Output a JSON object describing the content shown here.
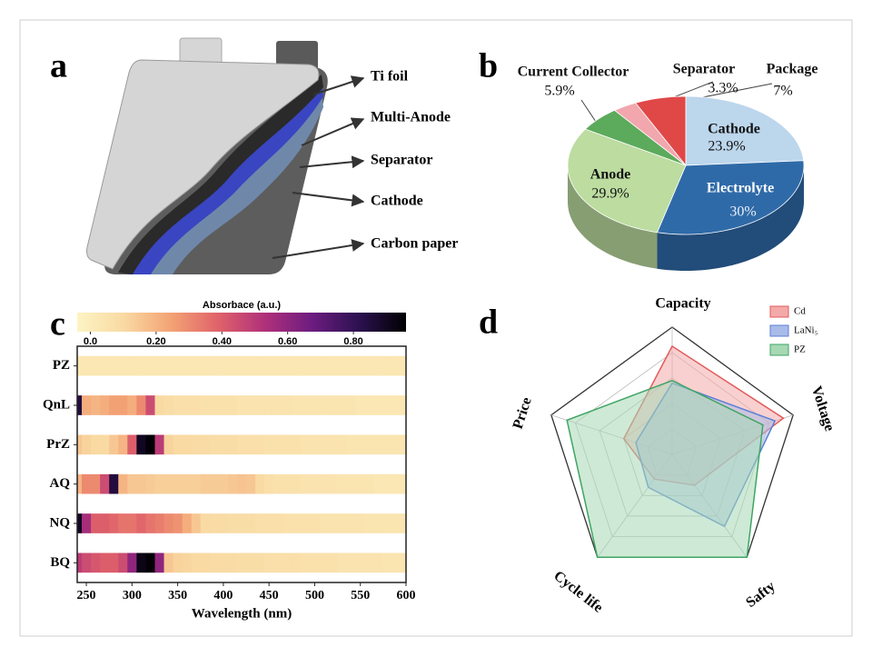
{
  "diagram": {
    "panel_labels": [
      "a",
      "b",
      "c",
      "d"
    ],
    "labels": [
      "Ti foil",
      "Multi-Anode",
      "Separator",
      "Cathode",
      "Carbon paper"
    ]
  },
  "chart_data": [
    {
      "type": "pie",
      "categories": [
        "Cathode",
        "Electrolyte",
        "Anode",
        "Current Collector",
        "Separator",
        "Package"
      ],
      "values": [
        23.9,
        30,
        29.9,
        5.9,
        3.3,
        7
      ],
      "value_labels": [
        "23.9%",
        "30%",
        "29.9%",
        "5.9%",
        "3.3%",
        "7%"
      ],
      "colors": [
        "#bcd6ec",
        "#2f6aa8",
        "#bcdca0",
        "#5caa5c",
        "#f2a6ad",
        "#e04848"
      ]
    },
    {
      "type": "heatmap",
      "colorbar_label": "Absorbace (a.u.)",
      "categories": [
        "PZ",
        "QnL",
        "PrZ",
        "AQ",
        "NQ",
        "BQ"
      ],
      "x": [
        240,
        250,
        260,
        270,
        280,
        290,
        300,
        310,
        320,
        330,
        340,
        350,
        360,
        370,
        380,
        390,
        400,
        410,
        420,
        430,
        440,
        450,
        460,
        470,
        480,
        490,
        500,
        510,
        520,
        530,
        540,
        550,
        560,
        570,
        580,
        590,
        600
      ],
      "values": [
        [
          0.03,
          0.03,
          0.03,
          0.03,
          0.03,
          0.03,
          0.03,
          0.03,
          0.03,
          0.03,
          0.03,
          0.03,
          0.03,
          0.03,
          0.03,
          0.03,
          0.03,
          0.03,
          0.03,
          0.03,
          0.03,
          0.03,
          0.03,
          0.03,
          0.03,
          0.03,
          0.03,
          0.03,
          0.03,
          0.03,
          0.03,
          0.03,
          0.03,
          0.03,
          0.03,
          0.03,
          0.03
        ],
        [
          0.85,
          0.22,
          0.2,
          0.22,
          0.25,
          0.25,
          0.22,
          0.3,
          0.45,
          0.1,
          0.08,
          0.07,
          0.07,
          0.07,
          0.06,
          0.06,
          0.06,
          0.06,
          0.05,
          0.05,
          0.05,
          0.05,
          0.05,
          0.05,
          0.04,
          0.04,
          0.04,
          0.04,
          0.04,
          0.04,
          0.04,
          0.03,
          0.03,
          0.03,
          0.03,
          0.03,
          0.03
        ],
        [
          0.15,
          0.12,
          0.1,
          0.1,
          0.15,
          0.2,
          0.4,
          0.9,
          0.95,
          0.5,
          0.12,
          0.1,
          0.1,
          0.09,
          0.09,
          0.08,
          0.08,
          0.08,
          0.07,
          0.07,
          0.07,
          0.06,
          0.06,
          0.06,
          0.06,
          0.05,
          0.05,
          0.05,
          0.05,
          0.05,
          0.04,
          0.04,
          0.04,
          0.04,
          0.04,
          0.04,
          0.04
        ],
        [
          0.2,
          0.3,
          0.3,
          0.45,
          0.85,
          0.2,
          0.15,
          0.15,
          0.14,
          0.13,
          0.13,
          0.13,
          0.13,
          0.13,
          0.14,
          0.14,
          0.14,
          0.15,
          0.16,
          0.15,
          0.1,
          0.07,
          0.06,
          0.06,
          0.06,
          0.05,
          0.05,
          0.05,
          0.05,
          0.04,
          0.04,
          0.04,
          0.04,
          0.03,
          0.03,
          0.03,
          0.03
        ],
        [
          0.9,
          0.55,
          0.4,
          0.4,
          0.38,
          0.35,
          0.35,
          0.38,
          0.35,
          0.33,
          0.3,
          0.28,
          0.22,
          0.15,
          0.1,
          0.09,
          0.09,
          0.08,
          0.08,
          0.08,
          0.07,
          0.07,
          0.07,
          0.06,
          0.06,
          0.06,
          0.06,
          0.05,
          0.05,
          0.05,
          0.05,
          0.05,
          0.04,
          0.04,
          0.04,
          0.04,
          0.04
        ],
        [
          0.5,
          0.45,
          0.42,
          0.4,
          0.4,
          0.45,
          0.6,
          0.92,
          0.95,
          0.6,
          0.15,
          0.12,
          0.11,
          0.1,
          0.1,
          0.09,
          0.09,
          0.09,
          0.08,
          0.08,
          0.08,
          0.07,
          0.07,
          0.07,
          0.07,
          0.06,
          0.06,
          0.06,
          0.06,
          0.05,
          0.05,
          0.05,
          0.05,
          0.05,
          0.04,
          0.04,
          0.04
        ]
      ],
      "xlim": [
        240,
        600
      ],
      "xticks": [
        250,
        300,
        350,
        400,
        450,
        500,
        550,
        600
      ],
      "xlabel": "Wavelength (nm)",
      "clim": [
        -0.04,
        0.96
      ],
      "cticks": [
        {
          "value": 0,
          "label": "0.0"
        },
        {
          "value": 0.2,
          "label": "0.20"
        },
        {
          "value": 0.4,
          "label": "0.40"
        },
        {
          "value": 0.6,
          "label": "0.60"
        },
        {
          "value": 0.8,
          "label": "0.80"
        }
      ],
      "colormap": [
        "#fcf4c4",
        "#f9d9a2",
        "#f3a374",
        "#e0626a",
        "#b0307a",
        "#6c1c80",
        "#2c1150",
        "#000000"
      ]
    },
    {
      "type": "radar",
      "axes": [
        "Capacity",
        "Voltage",
        "Safty",
        "Cycle life",
        "Price"
      ],
      "rlim": [
        0,
        5
      ],
      "rticks": [
        1,
        2,
        3,
        4,
        5
      ],
      "grid": true,
      "legend": "upper right",
      "series": [
        {
          "name": "Cd",
          "color": "#e25c5c",
          "fill": "#f4a9a9",
          "values": [
            4.25,
            4.6,
            1.5,
            1.2,
            2
          ]
        },
        {
          "name": "LaNi₅",
          "color": "#5b7fd6",
          "fill": "#a9bbe8",
          "values": [
            2.8,
            4.25,
            3.5,
            1.6,
            1.5
          ]
        },
        {
          "name": "PZ",
          "color": "#3fa564",
          "fill": "#a6d8b4",
          "values": [
            2.9,
            3.75,
            5,
            5,
            4.35
          ]
        }
      ]
    }
  ]
}
